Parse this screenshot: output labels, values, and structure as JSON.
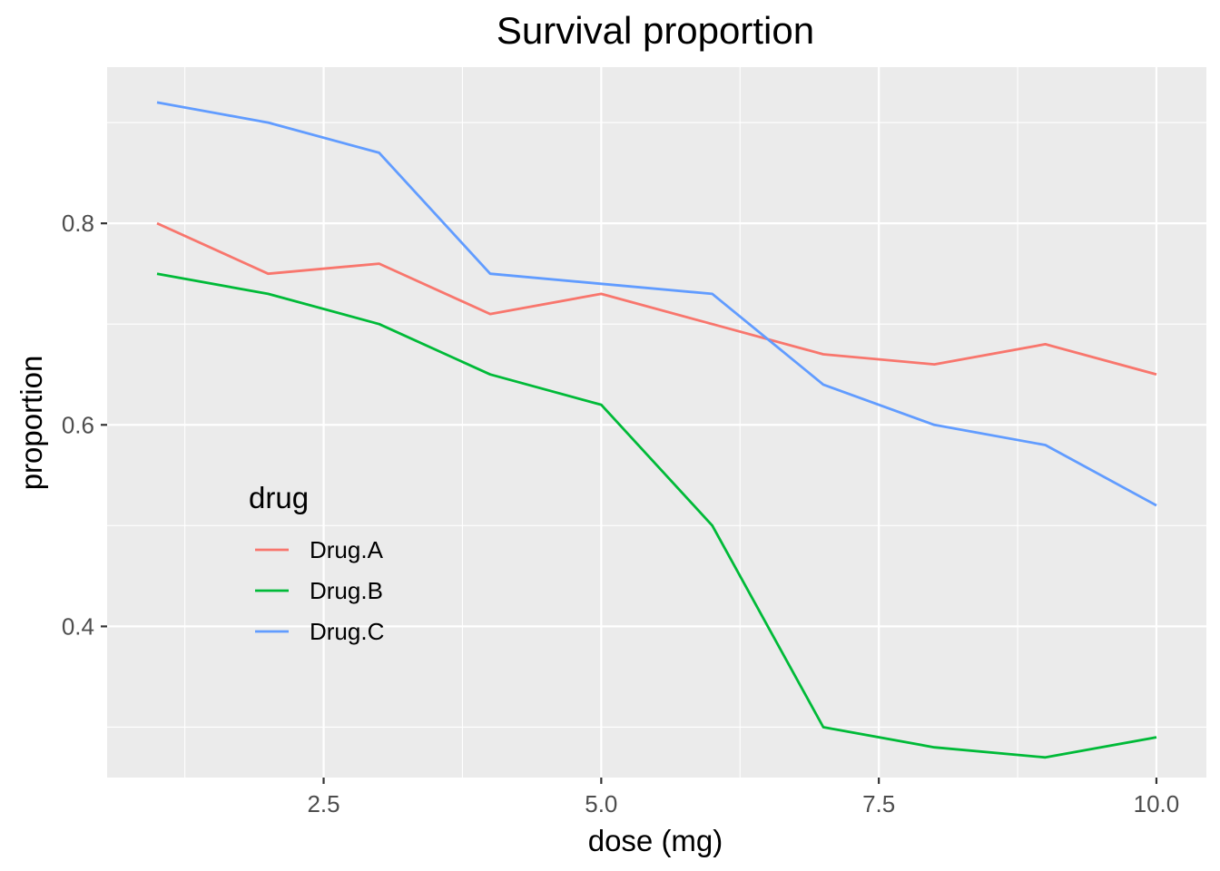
{
  "chart_data": {
    "type": "line",
    "title": "Survival proportion",
    "xlabel": "dose (mg)",
    "ylabel": "proportion",
    "x": [
      1,
      2,
      3,
      4,
      5,
      6,
      7,
      8,
      9,
      10
    ],
    "xlim": [
      0.55,
      10.45
    ],
    "ylim": [
      0.25,
      0.955
    ],
    "xticks": [
      2.5,
      5.0,
      7.5,
      10.0
    ],
    "xtick_labels": [
      "2.5",
      "5.0",
      "7.5",
      "10.0"
    ],
    "yticks": [
      0.4,
      0.6,
      0.8
    ],
    "ytick_labels": [
      "0.4",
      "0.6",
      "0.8"
    ],
    "grid": true,
    "legend_title": "drug",
    "legend_position": "inside-bottom-left",
    "series": [
      {
        "name": "Drug.A",
        "color": "#F8766D",
        "values": [
          0.8,
          0.75,
          0.76,
          0.71,
          0.73,
          0.7,
          0.67,
          0.66,
          0.68,
          0.65
        ]
      },
      {
        "name": "Drug.B",
        "color": "#00BA38",
        "values": [
          0.75,
          0.73,
          0.7,
          0.65,
          0.62,
          0.5,
          0.3,
          0.28,
          0.27,
          0.29
        ]
      },
      {
        "name": "Drug.C",
        "color": "#619CFF",
        "values": [
          0.92,
          0.9,
          0.87,
          0.75,
          0.74,
          0.73,
          0.64,
          0.6,
          0.58,
          0.52
        ]
      }
    ]
  }
}
